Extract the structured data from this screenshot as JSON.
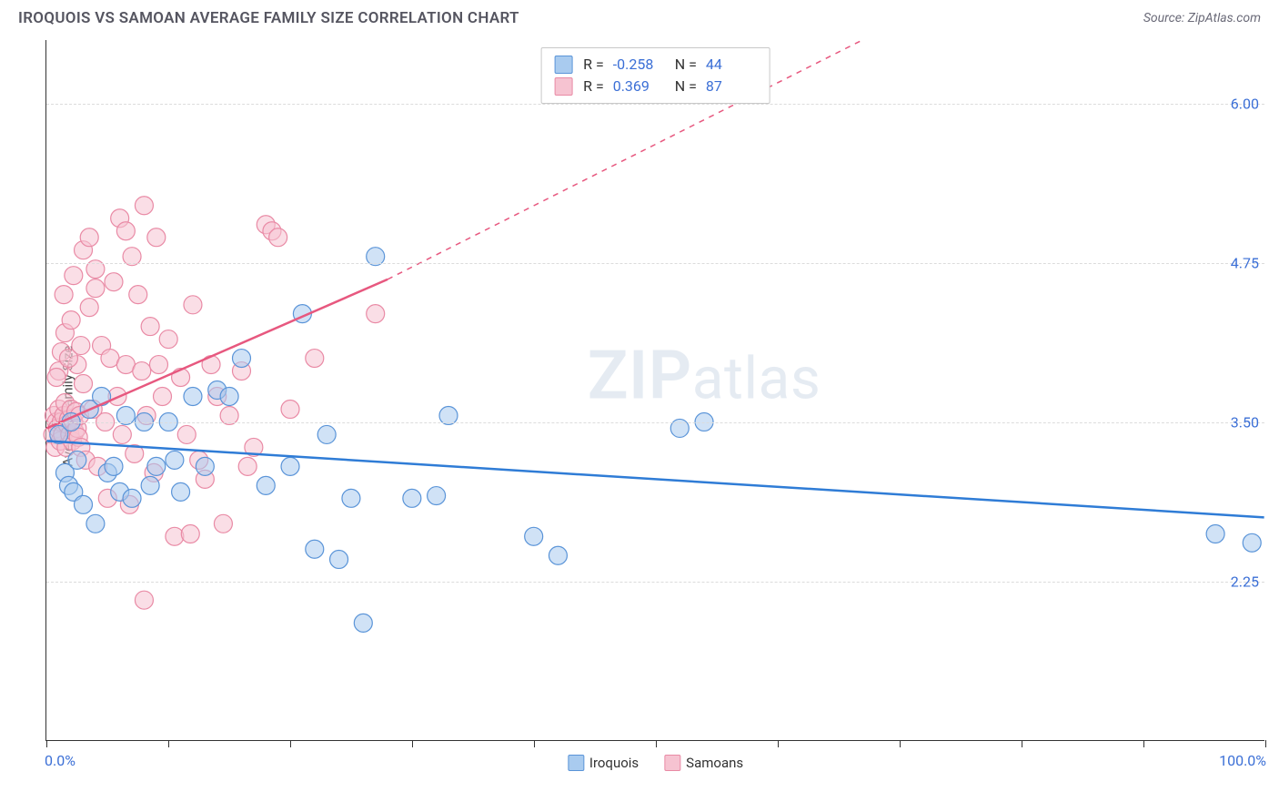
{
  "header": {
    "title": "IROQUOIS VS SAMOAN AVERAGE FAMILY SIZE CORRELATION CHART",
    "source": "Source: ZipAtlas.com"
  },
  "chart": {
    "type": "scatter",
    "ylabel": "Average Family Size",
    "xlim": [
      0,
      100
    ],
    "ylim": [
      1.0,
      6.5
    ],
    "yticks": [
      2.25,
      3.5,
      4.75,
      6.0
    ],
    "xticks_pct": [
      0,
      10,
      20,
      30,
      40,
      50,
      60,
      70,
      80,
      90,
      100
    ],
    "x_start_label": "0.0%",
    "x_end_label": "100.0%",
    "grid_color": "#dcdcdc",
    "background_color": "#ffffff",
    "marker_radius": 10,
    "marker_opacity": 0.55,
    "line_width": 2.5,
    "watermark": "ZIPatlas",
    "series": [
      {
        "name": "Iroquois",
        "color_fill": "#a9cbef",
        "color_stroke": "#5a94d8",
        "line_color": "#2f7cd6",
        "R": "-0.258",
        "N": "44",
        "trend": {
          "x1": 0,
          "y1": 3.35,
          "x2": 100,
          "y2": 2.75
        },
        "points": [
          [
            1,
            3.4
          ],
          [
            1.5,
            3.1
          ],
          [
            1.8,
            3.0
          ],
          [
            2,
            3.5
          ],
          [
            2.5,
            3.2
          ],
          [
            2.2,
            2.95
          ],
          [
            3,
            2.85
          ],
          [
            3.5,
            3.6
          ],
          [
            4,
            2.7
          ],
          [
            4.5,
            3.7
          ],
          [
            5,
            3.1
          ],
          [
            5.5,
            3.15
          ],
          [
            6,
            2.95
          ],
          [
            6.5,
            3.55
          ],
          [
            7,
            2.9
          ],
          [
            8,
            3.5
          ],
          [
            8.5,
            3.0
          ],
          [
            9,
            3.15
          ],
          [
            10,
            3.5
          ],
          [
            10.5,
            3.2
          ],
          [
            11,
            2.95
          ],
          [
            12,
            3.7
          ],
          [
            13,
            3.15
          ],
          [
            14,
            3.75
          ],
          [
            15,
            3.7
          ],
          [
            16,
            4.0
          ],
          [
            18,
            3.0
          ],
          [
            20,
            3.15
          ],
          [
            21,
            4.35
          ],
          [
            22,
            2.5
          ],
          [
            23,
            3.4
          ],
          [
            24,
            2.42
          ],
          [
            25,
            2.9
          ],
          [
            26,
            1.92
          ],
          [
            27,
            4.8
          ],
          [
            30,
            2.9
          ],
          [
            32,
            2.92
          ],
          [
            33,
            3.55
          ],
          [
            40,
            2.6
          ],
          [
            42,
            2.45
          ],
          [
            54,
            3.5
          ],
          [
            52,
            3.45
          ],
          [
            96,
            2.62
          ],
          [
            99,
            2.55
          ]
        ]
      },
      {
        "name": "Samoans",
        "color_fill": "#f6c3d1",
        "color_stroke": "#e98aa5",
        "line_color": "#e7587f",
        "R": "0.369",
        "N": "87",
        "trend": {
          "x1": 0,
          "y1": 3.45,
          "x2": 28,
          "y2": 4.62
        },
        "trend_dash": {
          "x1": 28,
          "y1": 4.62,
          "x2": 67,
          "y2": 6.5
        },
        "points": [
          [
            0.5,
            3.4
          ],
          [
            0.6,
            3.55
          ],
          [
            0.7,
            3.3
          ],
          [
            0.8,
            3.5
          ],
          [
            0.9,
            3.45
          ],
          [
            1.0,
            3.6
          ],
          [
            1.1,
            3.35
          ],
          [
            1.2,
            3.5
          ],
          [
            1.3,
            3.4
          ],
          [
            1.4,
            3.55
          ],
          [
            1.5,
            3.65
          ],
          [
            1.6,
            3.3
          ],
          [
            1.7,
            3.48
          ],
          [
            1.8,
            3.52
          ],
          [
            1.9,
            3.4
          ],
          [
            2.0,
            3.6
          ],
          [
            2.1,
            3.35
          ],
          [
            2.2,
            3.5
          ],
          [
            2.3,
            3.42
          ],
          [
            2.4,
            3.58
          ],
          [
            2.5,
            3.45
          ],
          [
            2.6,
            3.38
          ],
          [
            2.7,
            3.55
          ],
          [
            2.8,
            3.3
          ],
          [
            1.0,
            3.9
          ],
          [
            1.5,
            4.2
          ],
          [
            2.0,
            4.3
          ],
          [
            2.5,
            3.95
          ],
          [
            3.0,
            3.8
          ],
          [
            3.2,
            3.2
          ],
          [
            3.5,
            4.4
          ],
          [
            3.8,
            3.6
          ],
          [
            4.0,
            4.7
          ],
          [
            4.2,
            3.15
          ],
          [
            4.5,
            4.1
          ],
          [
            4.8,
            3.5
          ],
          [
            5.0,
            2.9
          ],
          [
            5.2,
            4.0
          ],
          [
            5.5,
            4.6
          ],
          [
            5.8,
            3.7
          ],
          [
            6.0,
            5.1
          ],
          [
            6.2,
            3.4
          ],
          [
            6.5,
            3.95
          ],
          [
            6.8,
            2.85
          ],
          [
            7.0,
            4.8
          ],
          [
            7.2,
            3.25
          ],
          [
            7.5,
            4.5
          ],
          [
            7.8,
            3.9
          ],
          [
            8.0,
            5.2
          ],
          [
            8.2,
            3.55
          ],
          [
            8.5,
            4.25
          ],
          [
            8.8,
            3.1
          ],
          [
            9.0,
            4.95
          ],
          [
            9.5,
            3.7
          ],
          [
            10,
            4.15
          ],
          [
            10.5,
            2.6
          ],
          [
            11,
            3.85
          ],
          [
            11.5,
            3.4
          ],
          [
            12,
            4.42
          ],
          [
            12.5,
            3.2
          ],
          [
            13,
            3.05
          ],
          [
            14,
            3.7
          ],
          [
            14.5,
            2.7
          ],
          [
            15,
            3.55
          ],
          [
            16,
            3.9
          ],
          [
            17,
            3.3
          ],
          [
            18,
            5.05
          ],
          [
            18.5,
            5.0
          ],
          [
            19,
            4.95
          ],
          [
            20,
            3.6
          ],
          [
            22,
            4.0
          ],
          [
            8,
            2.1
          ],
          [
            3,
            4.85
          ],
          [
            3.5,
            4.95
          ],
          [
            4,
            4.55
          ],
          [
            1.2,
            4.05
          ],
          [
            1.8,
            4.0
          ],
          [
            2.2,
            4.65
          ],
          [
            2.8,
            4.1
          ],
          [
            0.8,
            3.85
          ],
          [
            1.4,
            4.5
          ],
          [
            6.5,
            5.0
          ],
          [
            9.2,
            3.95
          ],
          [
            27,
            4.35
          ],
          [
            11.8,
            2.62
          ],
          [
            13.5,
            3.95
          ],
          [
            16.5,
            3.15
          ]
        ]
      }
    ],
    "legend_bottom": [
      {
        "label": "Iroquois",
        "fill": "#a9cbef",
        "stroke": "#5a94d8"
      },
      {
        "label": "Samoans",
        "fill": "#f6c3d1",
        "stroke": "#e98aa5"
      }
    ]
  }
}
